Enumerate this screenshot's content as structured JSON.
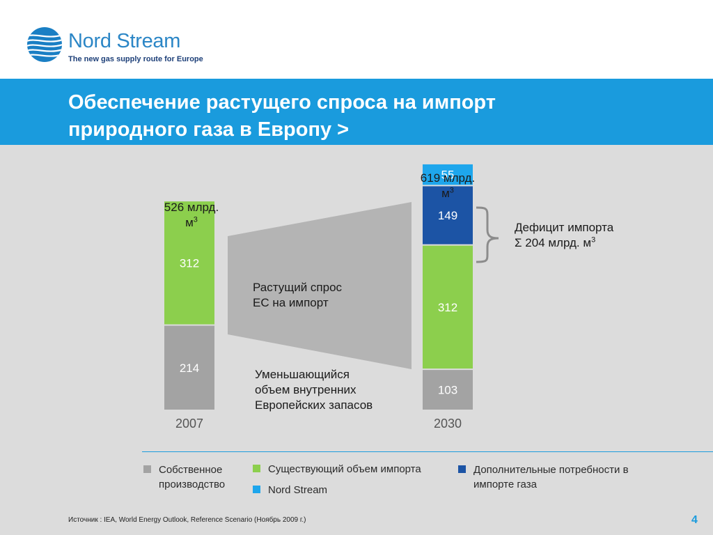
{
  "brand": {
    "name": "Nord Stream",
    "tagline": "The new gas supply route for Europe"
  },
  "slide": {
    "title_line1": "Обеспечение растущего спроса на импорт",
    "title_line2": "природного газа в Европу >",
    "source": "Источник : IEA, World Energy Outlook, Reference Scenario (Ноябрь 2009 г.)",
    "page_number": "4"
  },
  "colors": {
    "accent_blue": "#1a9bdd",
    "own_production": "#a3a3a3",
    "existing_imports": "#8ccf4d",
    "additional_needs": "#1c54a5",
    "nord_stream": "#1ea6ec",
    "background": "#dcdcdc"
  },
  "annotations": {
    "total_2007_line1": "526 млрд.",
    "total_2007_line2": "м",
    "total_2030_line1": "619 млрд.",
    "total_2030_line2": "м",
    "superscript": "3",
    "deficit_line1": "Дефицит импорта",
    "deficit_sigma": "Σ",
    "deficit_line2": "204 млрд. м",
    "demand_line1": "Растущий спрос",
    "demand_line2": "ЕС на импорт",
    "supply_line1": "Уменьшающийся",
    "supply_line2": "объем внутренних",
    "supply_line3": "Европейских запасов"
  },
  "legend": {
    "own": {
      "line1": "Собственное",
      "line2": "производство",
      "icon": "square-swatch"
    },
    "existing": {
      "label": "Существующий объем импорта",
      "icon": "square-swatch"
    },
    "nord_stream": {
      "label": "Nord Stream",
      "icon": "square-swatch"
    },
    "additional": {
      "line1": "Дополнительные потребности в",
      "line2": "импорте газа",
      "icon": "square-swatch"
    }
  },
  "chart_data": {
    "type": "bar",
    "stacked": true,
    "categories": [
      "2007",
      "2030"
    ],
    "series": [
      {
        "name": "Собственное производство",
        "color": "#a3a3a3",
        "values": [
          214,
          103
        ]
      },
      {
        "name": "Существующий объем импорта",
        "color": "#8ccf4d",
        "values": [
          312,
          312
        ]
      },
      {
        "name": "Дополнительные потребности в импорте газа",
        "color": "#1c54a5",
        "values": [
          0,
          149
        ]
      },
      {
        "name": "Nord Stream",
        "color": "#1ea6ec",
        "values": [
          0,
          55
        ]
      }
    ],
    "totals": [
      526,
      619
    ],
    "grid": false,
    "legend_position": "bottom"
  }
}
